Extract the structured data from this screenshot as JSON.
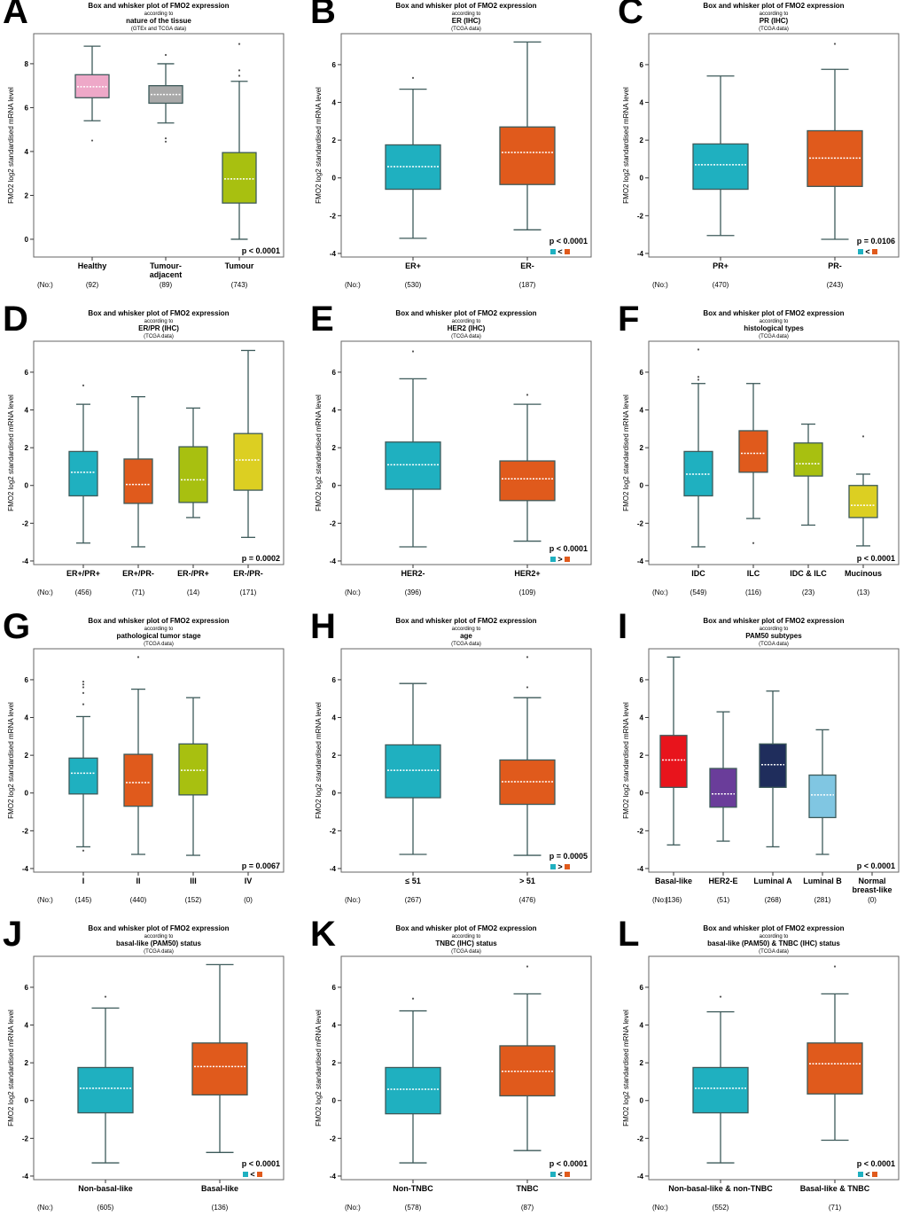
{
  "chart_data": [
    {
      "panel": "A",
      "type": "box",
      "title": "Box and whisker plot of FMO2 expression",
      "according": "according to",
      "subject": "nature of the tissue",
      "source": "(GTEx and TCGA data)",
      "ylabel": "FMO2 log2 standardised mRNA level",
      "ylim": [
        -0.81,
        9.37
      ],
      "yticks": [
        0,
        2,
        4,
        6,
        8
      ],
      "p": "p < 0.0001",
      "compare": null,
      "n_label": "(No:)",
      "groups": [
        {
          "label": [
            "Healthy"
          ],
          "n": "(92)",
          "color": "#eea8c8",
          "stats": [
            5.4,
            6.45,
            6.95,
            7.5,
            8.8
          ],
          "outliers": [
            4.5
          ]
        },
        {
          "label": [
            "Tumour-",
            "adjacent"
          ],
          "n": "(89)",
          "color": "#a9a9a9",
          "stats": [
            5.3,
            6.2,
            6.6,
            7.0,
            8.0
          ],
          "outliers": [
            8.4,
            4.6,
            4.45
          ]
        },
        {
          "label": [
            "Tumour"
          ],
          "n": "(743)",
          "color": "#a8c010",
          "stats": [
            0,
            1.65,
            2.75,
            3.95,
            7.2
          ],
          "outliers": [
            7.45,
            7.7,
            8.9
          ]
        }
      ]
    },
    {
      "panel": "B",
      "type": "box",
      "title": "Box and whisker plot of FMO2 expression",
      "according": "according to",
      "subject": "ER (IHC)",
      "source": "(TCGA data)",
      "ylabel": "FMO2 log2 standardised mRNA level",
      "ylim": [
        -4.19,
        7.64
      ],
      "yticks": [
        -4,
        -2,
        0,
        2,
        4,
        6
      ],
      "p": "p < 0.0001",
      "compare": "<",
      "n_label": "(No:)",
      "groups": [
        {
          "label": [
            "ER+"
          ],
          "n": "(530)",
          "color": "#1fb0c0",
          "stats": [
            -3.2,
            -0.6,
            0.6,
            1.75,
            4.7
          ],
          "outliers": [
            5.3
          ]
        },
        {
          "label": [
            "ER-"
          ],
          "n": "(187)",
          "color": "#e05a1c",
          "stats": [
            -2.75,
            -0.35,
            1.35,
            2.7,
            7.2
          ],
          "outliers": []
        }
      ]
    },
    {
      "panel": "C",
      "type": "box",
      "title": "Box and whisker plot of FMO2 expression",
      "according": "according to",
      "subject": "PR (IHC)",
      "source": "(TCGA data)",
      "ylabel": "FMO2 log2 standardised mRNA level",
      "ylim": [
        -4.19,
        7.64
      ],
      "yticks": [
        -4,
        -2,
        0,
        2,
        4,
        6
      ],
      "p": "p = 0.0106",
      "compare": "<",
      "n_label": "(No:)",
      "groups": [
        {
          "label": [
            "PR+"
          ],
          "n": "(470)",
          "color": "#1fb0c0",
          "stats": [
            -3.05,
            -0.6,
            0.7,
            1.8,
            5.4
          ],
          "outliers": []
        },
        {
          "label": [
            "PR-"
          ],
          "n": "(243)",
          "color": "#e05a1c",
          "stats": [
            -3.25,
            -0.45,
            1.05,
            2.5,
            5.75
          ],
          "outliers": [
            7.1
          ]
        }
      ]
    },
    {
      "panel": "D",
      "type": "box",
      "title": "Box and whisker plot of FMO2 expression",
      "according": "according to",
      "subject": "ER/PR (IHC)",
      "source": "(TCGA data)",
      "ylabel": "FMO2 log2 standardised mRNA level",
      "ylim": [
        -4.19,
        7.64
      ],
      "yticks": [
        -4,
        -2,
        0,
        2,
        4,
        6
      ],
      "p": "p = 0.0002",
      "compare": null,
      "n_label": "(No:)",
      "groups": [
        {
          "label": [
            "ER+/PR+"
          ],
          "n": "(456)",
          "color": "#1fb0c0",
          "stats": [
            -3.05,
            -0.55,
            0.7,
            1.8,
            4.3
          ],
          "outliers": [
            5.3
          ]
        },
        {
          "label": [
            "ER+/PR-"
          ],
          "n": "(71)",
          "color": "#e05a1c",
          "stats": [
            -3.25,
            -0.95,
            0.05,
            1.4,
            4.7
          ],
          "outliers": []
        },
        {
          "label": [
            "ER-/PR+"
          ],
          "n": "(14)",
          "color": "#a8c010",
          "stats": [
            -1.7,
            -0.9,
            0.3,
            2.05,
            4.1
          ],
          "outliers": []
        },
        {
          "label": [
            "ER-/PR-"
          ],
          "n": "(171)",
          "color": "#dccf22",
          "stats": [
            -2.75,
            -0.25,
            1.35,
            2.75,
            7.15
          ],
          "outliers": []
        }
      ]
    },
    {
      "panel": "E",
      "type": "box",
      "title": "Box and whisker plot of FMO2 expression",
      "according": "according to",
      "subject": "HER2 (IHC)",
      "source": "(TCGA data)",
      "ylabel": "FMO2 log2 standardised mRNA level",
      "ylim": [
        -4.19,
        7.64
      ],
      "yticks": [
        -4,
        -2,
        0,
        2,
        4,
        6
      ],
      "p": "p < 0.0001",
      "compare": ">",
      "n_label": "(No:)",
      "groups": [
        {
          "label": [
            "HER2-"
          ],
          "n": "(396)",
          "color": "#1fb0c0",
          "stats": [
            -3.25,
            -0.2,
            1.1,
            2.3,
            5.65
          ],
          "outliers": [
            7.1
          ]
        },
        {
          "label": [
            "HER2+"
          ],
          "n": "(109)",
          "color": "#e05a1c",
          "stats": [
            -2.95,
            -0.8,
            0.35,
            1.3,
            4.3
          ],
          "outliers": [
            4.8
          ]
        }
      ]
    },
    {
      "panel": "F",
      "type": "box",
      "title": "Box and whisker plot of FMO2 expression",
      "according": "according to",
      "subject": "histological types",
      "source": "(TCGA data)",
      "ylabel": "FMO2 log2 standardised mRNA level",
      "ylim": [
        -4.19,
        7.64
      ],
      "yticks": [
        -4,
        -2,
        0,
        2,
        4,
        6
      ],
      "p": "p < 0.0001",
      "compare": null,
      "n_label": "(No:)",
      "groups": [
        {
          "label": [
            "IDC"
          ],
          "n": "(549)",
          "color": "#1fb0c0",
          "stats": [
            -3.25,
            -0.55,
            0.6,
            1.8,
            5.4
          ],
          "outliers": [
            5.6,
            5.75,
            7.2
          ]
        },
        {
          "label": [
            "ILC"
          ],
          "n": "(116)",
          "color": "#e05a1c",
          "stats": [
            -1.75,
            0.7,
            1.7,
            2.9,
            5.4
          ],
          "outliers": [
            -3.05
          ]
        },
        {
          "label": [
            "IDC & ILC"
          ],
          "n": "(23)",
          "color": "#a8c010",
          "stats": [
            -2.1,
            0.5,
            1.15,
            2.25,
            3.25
          ],
          "outliers": []
        },
        {
          "label": [
            "Mucinous"
          ],
          "n": "(13)",
          "color": "#dccf22",
          "stats": [
            -3.2,
            -1.7,
            -1.05,
            0,
            0.6
          ],
          "outliers": [
            2.6
          ]
        }
      ]
    },
    {
      "panel": "G",
      "type": "box",
      "title": "Box and whisker plot of FMO2 expression",
      "according": "according to",
      "subject": "pathological tumor stage",
      "source": "(TCGA data)",
      "ylabel": "FMO2 log2 standardised mRNA level",
      "ylim": [
        -4.19,
        7.64
      ],
      "yticks": [
        -4,
        -2,
        0,
        2,
        4,
        6
      ],
      "p": "p = 0.0067",
      "compare": null,
      "n_label": "(No:)",
      "groups": [
        {
          "label": [
            "I"
          ],
          "n": "(145)",
          "color": "#1fb0c0",
          "stats": [
            -2.85,
            -0.05,
            1.05,
            1.85,
            4.05
          ],
          "outliers": [
            4.7,
            5.3,
            5.6,
            5.75,
            5.9,
            -3.05
          ]
        },
        {
          "label": [
            "II"
          ],
          "n": "(440)",
          "color": "#e05a1c",
          "stats": [
            -3.25,
            -0.7,
            0.55,
            2.05,
            5.5
          ],
          "outliers": [
            7.2
          ]
        },
        {
          "label": [
            "III"
          ],
          "n": "(152)",
          "color": "#a8c010",
          "stats": [
            -3.3,
            -0.1,
            1.2,
            2.6,
            5.05
          ],
          "outliers": []
        },
        {
          "label": [
            "IV"
          ],
          "n": "(0)",
          "color": null,
          "stats": null,
          "outliers": []
        }
      ]
    },
    {
      "panel": "H",
      "type": "box",
      "title": "Box and whisker plot of FMO2 expression",
      "according": "according to",
      "subject": "age",
      "source": "(TCGA data)",
      "ylabel": "FMO2 log2 standardised mRNA level",
      "ylim": [
        -4.19,
        7.64
      ],
      "yticks": [
        -4,
        -2,
        0,
        2,
        4,
        6
      ],
      "p": "p = 0.0005",
      "compare": ">",
      "n_label": "(No:)",
      "groups": [
        {
          "label": [
            "≤ 51"
          ],
          "n": "(267)",
          "color": "#1fb0c0",
          "stats": [
            -3.25,
            -0.25,
            1.2,
            2.55,
            5.8
          ],
          "outliers": []
        },
        {
          "label": [
            "> 51"
          ],
          "n": "(476)",
          "color": "#e05a1c",
          "stats": [
            -3.3,
            -0.6,
            0.6,
            1.75,
            5.05
          ],
          "outliers": [
            5.6,
            7.2
          ]
        }
      ]
    },
    {
      "panel": "I",
      "type": "box",
      "title": "Box and whisker plot of FMO2 expression",
      "according": "according to",
      "subject": "PAM50 subtypes",
      "source": "(TCGA data)",
      "ylabel": "FMO2 log2 standardised mRNA level",
      "ylim": [
        -4.19,
        7.64
      ],
      "yticks": [
        -4,
        -2,
        0,
        2,
        4,
        6
      ],
      "p": "p < 0.0001",
      "compare": null,
      "n_label": "(No:)",
      "groups": [
        {
          "label": [
            "Basal-like"
          ],
          "n": "(136)",
          "color": "#e8141c",
          "stats": [
            -2.75,
            0.3,
            1.75,
            3.05,
            7.2
          ],
          "outliers": []
        },
        {
          "label": [
            "HER2-E"
          ],
          "n": "(51)",
          "color": "#6a3d9a",
          "stats": [
            -2.55,
            -0.75,
            -0.05,
            1.3,
            4.3
          ],
          "outliers": []
        },
        {
          "label": [
            "Luminal A"
          ],
          "n": "(268)",
          "color": "#1f2d5c",
          "stats": [
            -2.85,
            0.3,
            1.5,
            2.6,
            5.4
          ],
          "outliers": []
        },
        {
          "label": [
            "Luminal B"
          ],
          "n": "(281)",
          "color": "#80c6e2",
          "stats": [
            -3.25,
            -1.3,
            -0.1,
            0.95,
            3.35
          ],
          "outliers": []
        },
        {
          "label": [
            "Normal",
            "breast-like"
          ],
          "n": "(0)",
          "color": null,
          "stats": null,
          "outliers": []
        }
      ]
    },
    {
      "panel": "J",
      "type": "box",
      "title": "Box and whisker plot of FMO2 expression",
      "according": "according to",
      "subject": "basal-like (PAM50) status",
      "source": "(TCGA data)",
      "ylabel": "FMO2 log2 standardised mRNA level",
      "ylim": [
        -4.19,
        7.64
      ],
      "yticks": [
        -4,
        -2,
        0,
        2,
        4,
        6
      ],
      "p": "p < 0.0001",
      "compare": "<",
      "n_label": "(No:)",
      "groups": [
        {
          "label": [
            "Non-basal-like"
          ],
          "n": "(605)",
          "color": "#1fb0c0",
          "stats": [
            -3.3,
            -0.65,
            0.65,
            1.75,
            4.9
          ],
          "outliers": [
            5.5
          ]
        },
        {
          "label": [
            "Basal-like"
          ],
          "n": "(136)",
          "color": "#e05a1c",
          "stats": [
            -2.75,
            0.3,
            1.8,
            3.05,
            7.2
          ],
          "outliers": []
        }
      ]
    },
    {
      "panel": "K",
      "type": "box",
      "title": "Box and whisker plot of FMO2 expression",
      "according": "according to",
      "subject": "TNBC (IHC) status",
      "source": "(TCGA data)",
      "ylabel": "FMO2 log2 standardised mRNA level",
      "ylim": [
        -4.19,
        7.64
      ],
      "yticks": [
        -4,
        -2,
        0,
        2,
        4,
        6
      ],
      "p": "p < 0.0001",
      "compare": "<",
      "n_label": "(No:)",
      "groups": [
        {
          "label": [
            "Non-TNBC"
          ],
          "n": "(578)",
          "color": "#1fb0c0",
          "stats": [
            -3.3,
            -0.7,
            0.6,
            1.75,
            4.75
          ],
          "outliers": [
            5.4
          ]
        },
        {
          "label": [
            "TNBC"
          ],
          "n": "(87)",
          "color": "#e05a1c",
          "stats": [
            -2.65,
            0.25,
            1.55,
            2.9,
            5.65
          ],
          "outliers": [
            7.1
          ]
        }
      ]
    },
    {
      "panel": "L",
      "type": "box",
      "title": "Box and whisker plot of FMO2 expression",
      "according": "according to",
      "subject": "basal-like (PAM50) & TNBC (IHC) status",
      "source": "(TCGA data)",
      "ylabel": "FMO2 log2 standardised mRNA level",
      "ylim": [
        -4.19,
        7.64
      ],
      "yticks": [
        -4,
        -2,
        0,
        2,
        4,
        6
      ],
      "p": "p < 0.0001",
      "compare": "<",
      "n_label": "(No:)",
      "groups": [
        {
          "label": [
            "Non-basal-like & non-TNBC"
          ],
          "n": "(552)",
          "color": "#1fb0c0",
          "stats": [
            -3.3,
            -0.65,
            0.65,
            1.75,
            4.7
          ],
          "outliers": [
            5.5
          ]
        },
        {
          "label": [
            "Basal-like & TNBC"
          ],
          "n": "(71)",
          "color": "#e05a1c",
          "stats": [
            -2.1,
            0.35,
            1.95,
            3.05,
            5.65
          ],
          "outliers": [
            7.1
          ]
        }
      ]
    }
  ]
}
